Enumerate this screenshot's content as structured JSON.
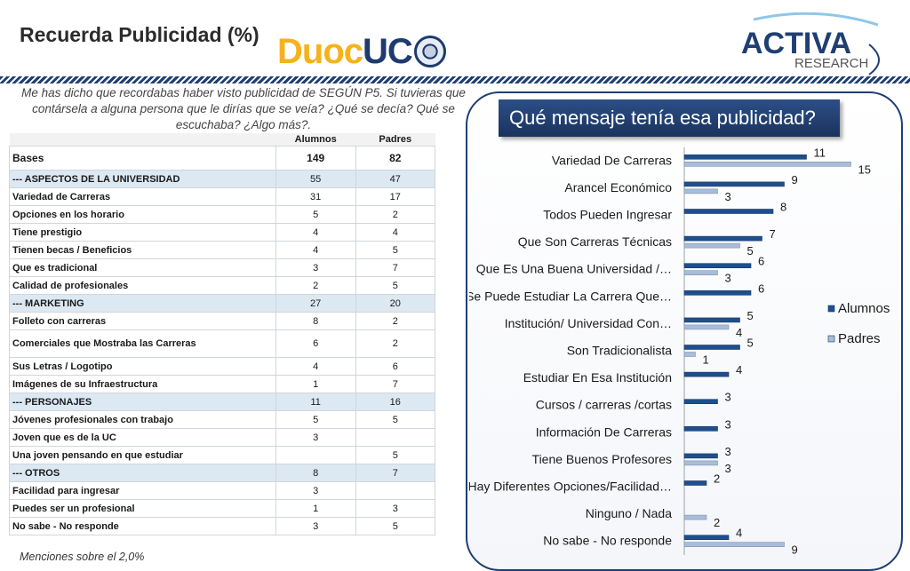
{
  "header": {
    "title": "Recuerda Publicidad (%)",
    "logo_duoc_a": "Duoc",
    "logo_duoc_b": "UC",
    "logo_activa_a": "ACTIVA",
    "logo_activa_b": "RESEARCH"
  },
  "question": "Me has dicho que recordabas haber visto publicidad de SEGÚN P5. Si tuvieras que contársela a alguna persona que le dirías que se veía? ¿Qué se decía? Qué se escuchaba? ¿Algo más?.",
  "table": {
    "col_alumnos": "Alumnos",
    "col_padres": "Padres",
    "rows": [
      {
        "label": "Bases",
        "a": "149",
        "p": "82"
      },
      {
        "label": "--- ASPECTOS DE LA UNIVERSIDAD",
        "a": "55",
        "p": "47"
      },
      {
        "label": "Variedad de Carreras",
        "a": "31",
        "p": "17"
      },
      {
        "label": "Opciones en los horario",
        "a": "5",
        "p": "2"
      },
      {
        "label": "Tiene prestigio",
        "a": "4",
        "p": "4"
      },
      {
        "label": "Tienen becas / Beneficios",
        "a": "4",
        "p": "5"
      },
      {
        "label": "Que es tradicional",
        "a": "3",
        "p": "7"
      },
      {
        "label": "Calidad de profesionales",
        "a": "2",
        "p": "5"
      },
      {
        "label": "--- MARKETING",
        "a": "27",
        "p": "20"
      },
      {
        "label": "Folleto con carreras",
        "a": "8",
        "p": "2"
      },
      {
        "label": "Comerciales que Mostraba las Carreras",
        "a": "6",
        "p": "2"
      },
      {
        "label": "Sus Letras / Logotipo",
        "a": "4",
        "p": "6"
      },
      {
        "label": "Imágenes de su Infraestructura",
        "a": "1",
        "p": "7"
      },
      {
        "label": "--- PERSONAJES",
        "a": "11",
        "p": "16"
      },
      {
        "label": "Jóvenes profesionales con trabajo",
        "a": "5",
        "p": "5"
      },
      {
        "label": "Joven que es de la UC",
        "a": "3",
        "p": ""
      },
      {
        "label": "Una joven pensando en que estudiar",
        "a": "",
        "p": "5"
      },
      {
        "label": "--- OTROS",
        "a": "8",
        "p": "7"
      },
      {
        "label": "Facilidad para ingresar",
        "a": "3",
        "p": ""
      },
      {
        "label": "Puedes ser un profesional",
        "a": "1",
        "p": "3"
      },
      {
        "label": "No sabe - No responde",
        "a": "3",
        "p": "5"
      }
    ]
  },
  "footnote": "Menciones sobre el 2,0%",
  "panel_title": "Qué mensaje tenía esa publicidad?",
  "colors": {
    "alumnos": "#1f4e8c",
    "padres": "#a9bcd8",
    "navy": "#1f3f73"
  },
  "chart_data": {
    "type": "bar",
    "orientation": "horizontal",
    "categories": [
      "Variedad De Carreras",
      "Arancel Económico",
      "Todos Pueden Ingresar",
      "Que Son Carreras Técnicas",
      "Que Es Una Buena Universidad /…",
      "Se Puede Estudiar La Carrera Que…",
      "Institución/ Universidad Con…",
      "Son Tradicionalista",
      "Estudiar En Esa Institución",
      "Cursos / carreras /cortas",
      "Información De Carreras",
      "Tiene Buenos Profesores",
      "Hay Diferentes Opciones/Facilidad…",
      "Ninguno / Nada",
      "No sabe - No responde"
    ],
    "series": [
      {
        "name": "Alumnos",
        "values": [
          11,
          9,
          8,
          7,
          6,
          6,
          5,
          5,
          4,
          3,
          3,
          3,
          2,
          null,
          4
        ]
      },
      {
        "name": "Padres",
        "values": [
          15,
          3,
          null,
          5,
          3,
          null,
          4,
          1,
          null,
          null,
          null,
          3,
          null,
          2,
          9
        ]
      }
    ],
    "legend_position": "right",
    "grid": false
  }
}
